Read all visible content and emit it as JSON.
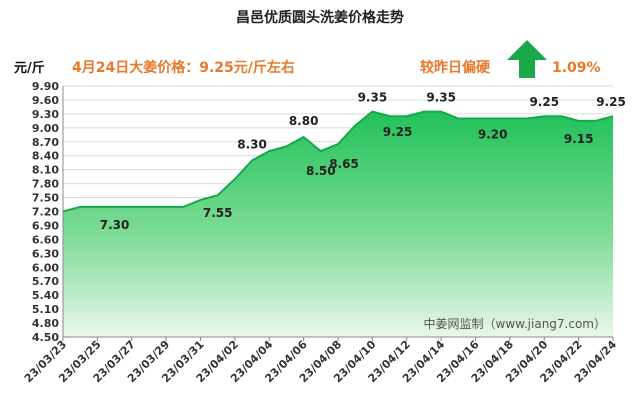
{
  "chart_data": {
    "type": "area",
    "title": "昌邑优质圆头洗姜价格走势",
    "ylabel": "元/斤",
    "ylim": [
      4.5,
      9.9
    ],
    "yticks": [
      "4.50",
      "4.80",
      "5.10",
      "5.40",
      "5.70",
      "6.00",
      "6.30",
      "6.60",
      "6.90",
      "7.20",
      "7.50",
      "7.80",
      "8.10",
      "8.40",
      "8.70",
      "9.00",
      "9.30",
      "9.60",
      "9.90"
    ],
    "xticks": [
      "23/03/23",
      "23/03/25",
      "23/03/27",
      "23/03/29",
      "23/03/31",
      "23/04/02",
      "23/04/04",
      "23/04/06",
      "23/04/08",
      "23/04/10",
      "23/04/12",
      "23/04/14",
      "23/04/16",
      "23/04/18",
      "23/04/20",
      "23/04/22",
      "23/04/24"
    ],
    "x": [
      "23/03/23",
      "23/03/24",
      "23/03/25",
      "23/03/26",
      "23/03/27",
      "23/03/28",
      "23/03/29",
      "23/03/30",
      "23/03/31",
      "23/04/01",
      "23/04/02",
      "23/04/03",
      "23/04/04",
      "23/04/05",
      "23/04/06",
      "23/04/07",
      "23/04/08",
      "23/04/09",
      "23/04/10",
      "23/04/11",
      "23/04/12",
      "23/04/13",
      "23/04/14",
      "23/04/15",
      "23/04/16",
      "23/04/17",
      "23/04/18",
      "23/04/19",
      "23/04/20",
      "23/04/21",
      "23/04/22",
      "23/04/23",
      "23/04/24"
    ],
    "values": [
      7.2,
      7.3,
      7.3,
      7.3,
      7.3,
      7.3,
      7.3,
      7.3,
      7.45,
      7.55,
      7.9,
      8.3,
      8.5,
      8.6,
      8.8,
      8.5,
      8.65,
      9.05,
      9.35,
      9.25,
      9.25,
      9.35,
      9.35,
      9.2,
      9.2,
      9.2,
      9.2,
      9.2,
      9.25,
      9.25,
      9.15,
      9.15,
      9.25
    ],
    "data_labels": [
      {
        "x": "23/03/26",
        "text": "7.30"
      },
      {
        "x": "23/04/01",
        "text": "7.55"
      },
      {
        "x": "23/04/03",
        "text": "8.30"
      },
      {
        "x": "23/04/06",
        "text": "8.80"
      },
      {
        "x": "23/04/07",
        "text": "8.50"
      },
      {
        "x": "23/04/08",
        "text": "8.65"
      },
      {
        "x": "23/04/10",
        "text": "9.35"
      },
      {
        "x": "23/04/11",
        "text": "9.25"
      },
      {
        "x": "23/04/14",
        "text": "9.35"
      },
      {
        "x": "23/04/17",
        "text": "9.20"
      },
      {
        "x": "23/04/20",
        "text": "9.25"
      },
      {
        "x": "23/04/22",
        "text": "9.15"
      },
      {
        "x": "23/04/24",
        "text": "9.25"
      }
    ],
    "grid": true,
    "colors": {
      "fill_top": "#21c15a",
      "fill_bottom": "#e9f8ec",
      "line": "#18a84a",
      "grid": "#dcdcdc",
      "accent": "#e8782a",
      "arrow": "#1aa84a"
    }
  },
  "header": {
    "price_text": "4月24日大姜价格：9.25元/斤左右",
    "change_label": "较昨日偏硬",
    "change_value": "1.09%",
    "change_icon": "up-arrow-icon"
  },
  "watermark": "中姜网监制（www.jiang7.com）"
}
